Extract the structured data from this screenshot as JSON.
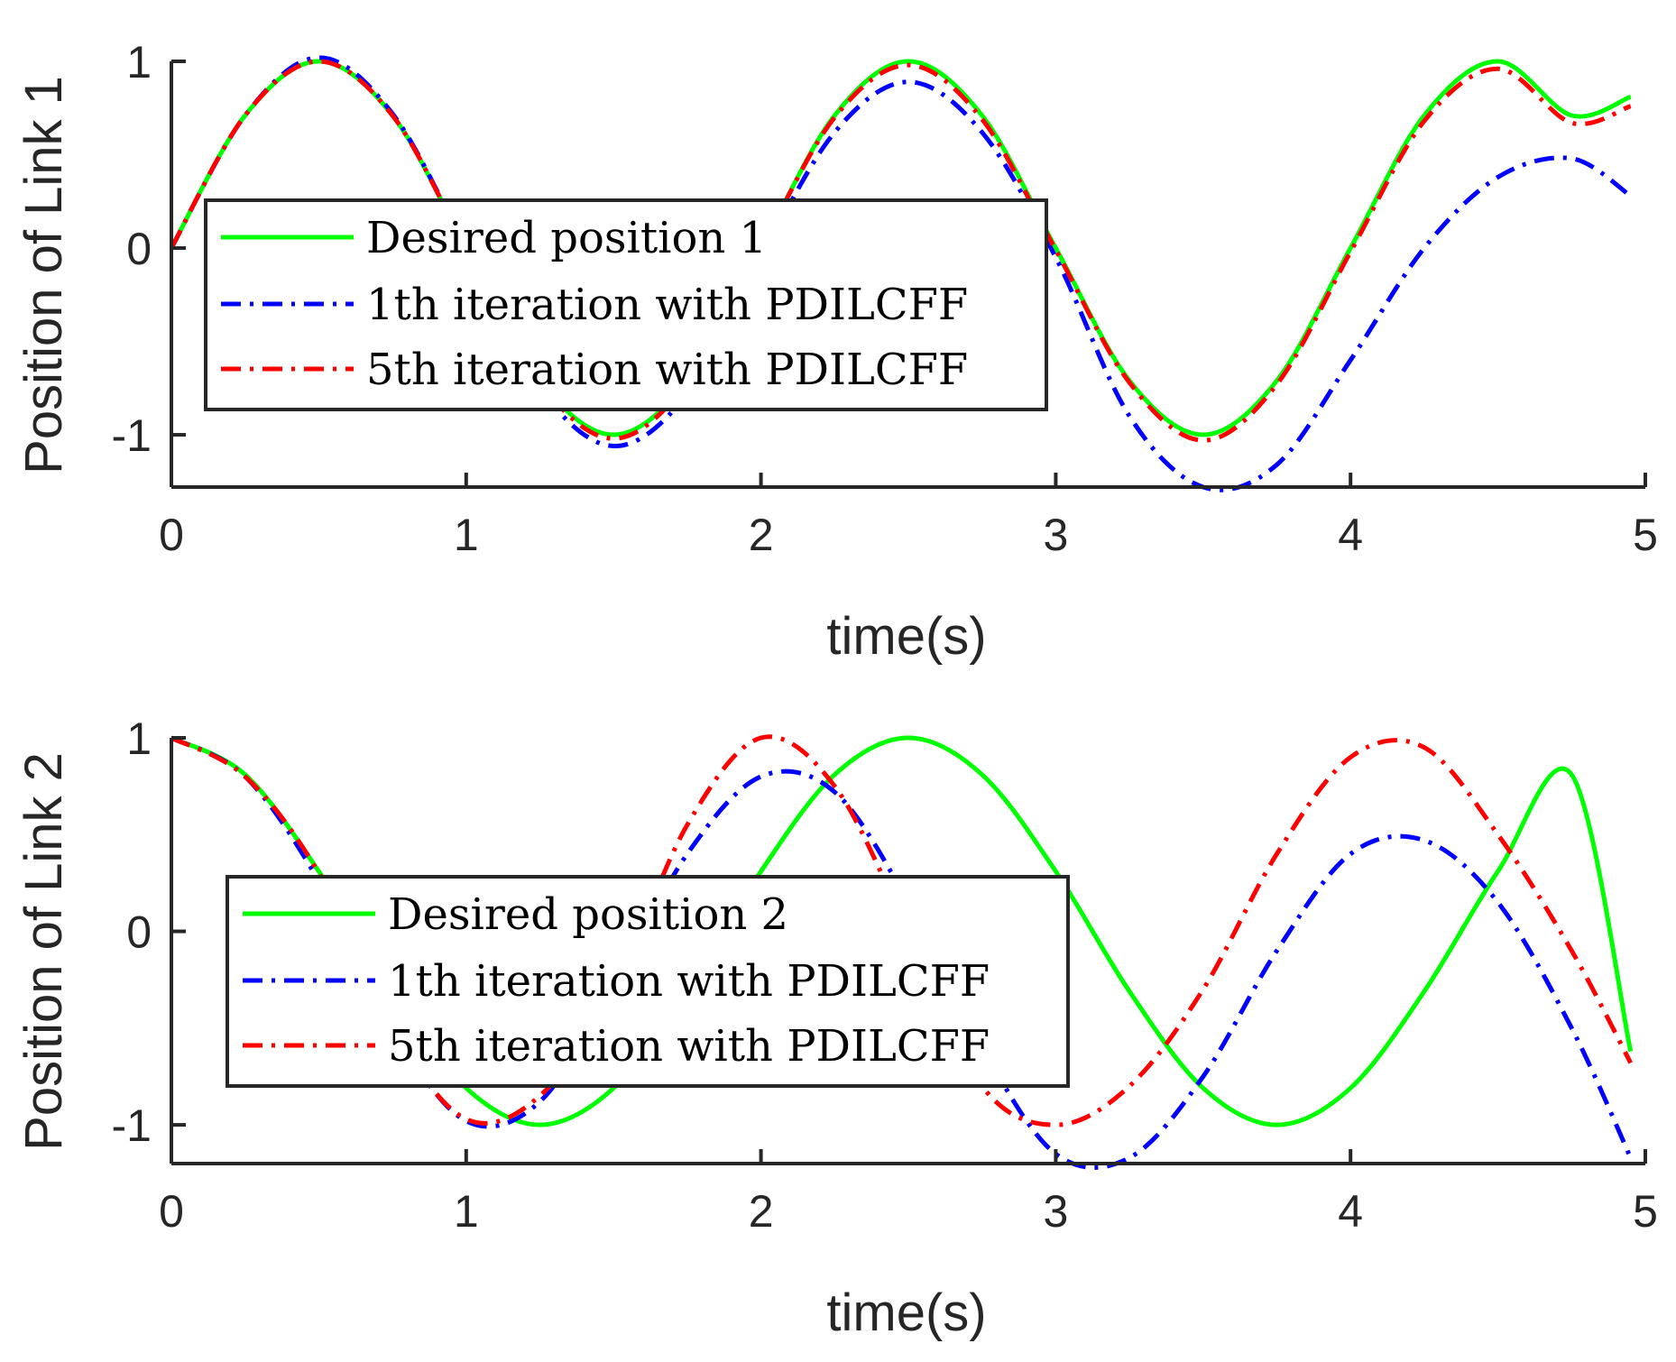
{
  "chart_data": [
    {
      "type": "line",
      "xlabel": "time(s)",
      "ylabel": "Position of Link 1",
      "xlim": [
        0,
        5
      ],
      "ylim": [
        -1.28,
        1
      ],
      "xticks": [
        0,
        1,
        2,
        3,
        4,
        5
      ],
      "xtick_labels": [
        "0",
        "1",
        "2",
        "3",
        "4",
        "5"
      ],
      "yticks": [
        -1,
        0,
        1
      ],
      "ytick_labels": [
        "-1",
        "0",
        "1"
      ],
      "legend_position": "center-left",
      "series": [
        {
          "name": "Desired position 1",
          "color": "#00ff00",
          "style": "solid",
          "x": [
            0,
            0.25,
            0.5,
            0.75,
            1,
            1.25,
            1.5,
            1.75,
            2,
            2.25,
            2.5,
            2.75,
            3,
            3.25,
            3.5,
            3.75,
            4,
            4.25,
            4.5,
            4.75,
            4.95
          ],
          "y": [
            0,
            0.71,
            1.0,
            0.71,
            0.0,
            -0.71,
            -1.0,
            -0.71,
            0.0,
            0.71,
            1.0,
            0.71,
            0.0,
            -0.71,
            -1.0,
            -0.71,
            0.0,
            0.71,
            1.0,
            0.71,
            0.81
          ]
        },
        {
          "name": "1th iteration with PDILCFF",
          "color": "#0000ff",
          "style": "dashdot",
          "x": [
            0,
            0.25,
            0.5,
            0.75,
            1,
            1.25,
            1.5,
            1.75,
            2,
            2.25,
            2.5,
            2.75,
            3,
            3.25,
            3.5,
            3.75,
            4,
            4.25,
            4.5,
            4.75,
            4.95
          ],
          "y": [
            0,
            0.71,
            1.02,
            0.72,
            0.0,
            -0.75,
            -1.06,
            -0.78,
            -0.05,
            0.62,
            0.89,
            0.62,
            -0.05,
            -0.9,
            -1.28,
            -1.16,
            -0.6,
            0.0,
            0.38,
            0.48,
            0.28
          ]
        },
        {
          "name": "5th iteration with PDILCFF",
          "color": "#ff0000",
          "style": "dashdot",
          "x": [
            0,
            0.25,
            0.5,
            0.75,
            1,
            1.25,
            1.5,
            1.75,
            2,
            2.25,
            2.5,
            2.75,
            3,
            3.25,
            3.5,
            3.75,
            4,
            4.25,
            4.5,
            4.75,
            4.95
          ],
          "y": [
            0,
            0.71,
            1.0,
            0.71,
            0.0,
            -0.72,
            -1.02,
            -0.72,
            0.0,
            0.7,
            0.98,
            0.69,
            -0.01,
            -0.72,
            -1.03,
            -0.73,
            -0.02,
            0.68,
            0.96,
            0.67,
            0.76
          ]
        }
      ]
    },
    {
      "type": "line",
      "xlabel": "time(s)",
      "ylabel": "Position of Link 2",
      "xlim": [
        0,
        5
      ],
      "ylim": [
        -1.2,
        1
      ],
      "xticks": [
        0,
        1,
        2,
        3,
        4,
        5
      ],
      "xtick_labels": [
        "0",
        "1",
        "2",
        "3",
        "4",
        "5"
      ],
      "yticks": [
        -1,
        0,
        1
      ],
      "ytick_labels": [
        "-1",
        "0",
        "1"
      ],
      "legend_position": "center-left",
      "series": [
        {
          "name": "Desired position 2",
          "color": "#00ff00",
          "style": "solid",
          "x": [
            0,
            0.25,
            0.5,
            0.75,
            1,
            1.25,
            1.5,
            1.75,
            2,
            2.25,
            2.5,
            2.75,
            3,
            3.25,
            3.5,
            3.75,
            4,
            4.25,
            4.5,
            4.75,
            4.95
          ],
          "y": [
            1.0,
            0.81,
            0.31,
            -0.31,
            -0.81,
            -1.0,
            -0.81,
            -0.31,
            0.31,
            0.81,
            1.0,
            0.81,
            0.31,
            -0.31,
            -0.81,
            -1.0,
            -0.81,
            -0.31,
            0.31,
            0.81,
            -0.62
          ]
        },
        {
          "name": "1th iteration with PDILCFF",
          "color": "#0000ff",
          "style": "dashdot",
          "x": [
            0,
            0.25,
            0.5,
            0.75,
            1,
            1.25,
            1.5,
            1.75,
            2,
            2.25,
            2.5,
            2.75,
            3,
            3.25,
            3.5,
            3.75,
            4,
            4.25,
            4.5,
            4.75,
            4.95
          ],
          "y": [
            1.0,
            0.8,
            0.26,
            -0.5,
            -0.98,
            -0.88,
            -0.28,
            0.4,
            0.8,
            0.72,
            0.15,
            -0.6,
            -1.15,
            -1.17,
            -0.75,
            -0.1,
            0.4,
            0.47,
            0.15,
            -0.5,
            -1.17
          ]
        },
        {
          "name": "5th iteration with PDILCFF",
          "color": "#ff0000",
          "style": "dashdot",
          "x": [
            0,
            0.25,
            0.5,
            0.75,
            1,
            1.25,
            1.5,
            1.75,
            2,
            2.25,
            2.5,
            2.75,
            3,
            3.25,
            3.5,
            3.75,
            4,
            4.25,
            4.5,
            4.75,
            4.95
          ],
          "y": [
            1.0,
            0.8,
            0.3,
            -0.5,
            -0.97,
            -0.85,
            -0.3,
            0.55,
            1.0,
            0.75,
            0.0,
            -0.8,
            -1.0,
            -0.8,
            -0.3,
            0.4,
            0.9,
            0.95,
            0.5,
            -0.1,
            -0.68
          ]
        }
      ]
    }
  ]
}
